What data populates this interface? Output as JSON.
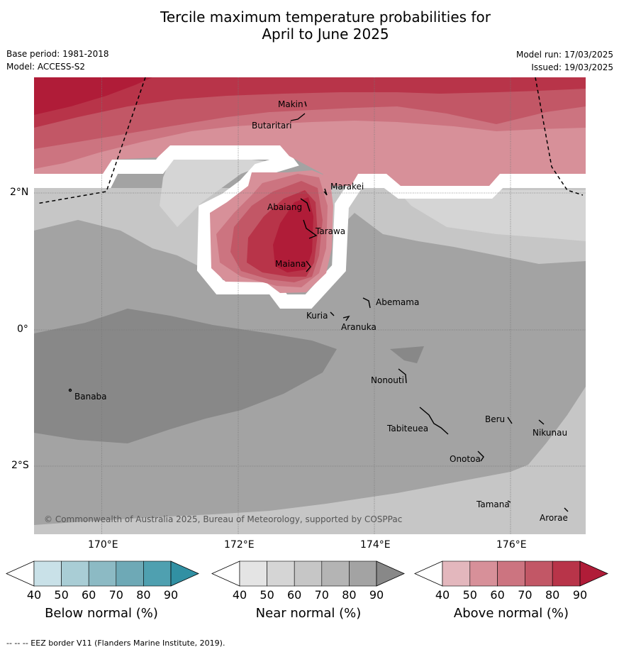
{
  "title_line1": "Tercile maximum temperature probabilities for",
  "title_line2": "April to June 2025",
  "base_period": "Base period: 1981-2018",
  "model": "Model: ACCESS-S2",
  "model_run": "Model run: 17/03/2025",
  "issued": "Issued: 19/03/2025",
  "copyright": "© Commonwealth of Australia 2025, Bureau of Meteorology, supported by COSPPac",
  "footer": "--  --  -- EEZ border V11 (Flanders Marine Institute, 2019).",
  "longitudes": [
    "170°E",
    "172°E",
    "174°E",
    "176°E"
  ],
  "latitudes": [
    "2°N",
    "0°",
    "2°S"
  ],
  "places": [
    "Makin",
    "Butaritari",
    "Marakei",
    "Abaiang",
    "Tarawa",
    "Maiana",
    "Abemama",
    "Kuria",
    "Aranuka",
    "Nonouti",
    "Banaba",
    "Beru",
    "Tabiteuea",
    "Nikunau",
    "Onotoa",
    "Tamana",
    "Arorae"
  ],
  "colorbars": [
    {
      "label": "Below normal (%)",
      "ticks": [
        "40",
        "50",
        "60",
        "70",
        "80",
        "90"
      ],
      "colors": [
        "#c9e1e8",
        "#a9cdd5",
        "#8cbac4",
        "#6ea9b6",
        "#4fa0b0",
        "#3190a3"
      ]
    },
    {
      "label": "Near normal (%)",
      "ticks": [
        "40",
        "50",
        "60",
        "70",
        "80",
        "90"
      ],
      "colors": [
        "#e4e4e4",
        "#d5d5d5",
        "#c6c6c6",
        "#b4b4b4",
        "#a3a3a3",
        "#888888"
      ]
    },
    {
      "label": "Above normal (%)",
      "ticks": [
        "40",
        "50",
        "60",
        "70",
        "80",
        "90"
      ],
      "colors": [
        "#e3b7bd",
        "#d79099",
        "#cc7480",
        "#c25766",
        "#b83449",
        "#b01c38"
      ]
    }
  ],
  "colors": {
    "white_gap": "#ffffff",
    "grid": "#777777",
    "eez": "#000000"
  }
}
